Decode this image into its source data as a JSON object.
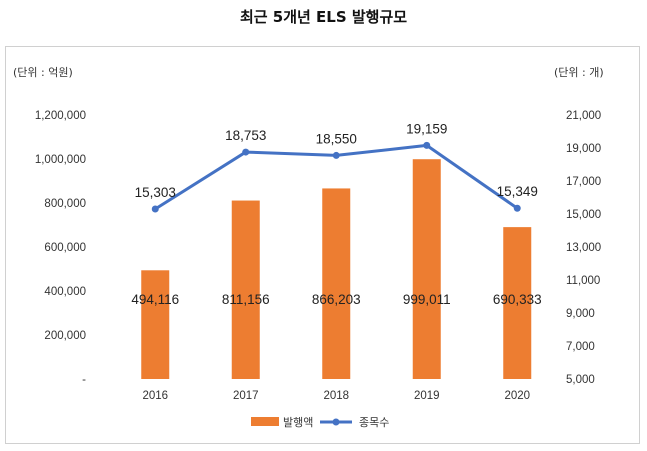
{
  "title": "최근 5개년 ELS 발행규모",
  "chart_data": {
    "type": "bar",
    "title": "최근 5개년 ELS 발행규모",
    "categories": [
      "2016",
      "2017",
      "2018",
      "2019",
      "2020"
    ],
    "series": [
      {
        "name": "발행액",
        "type": "bar",
        "axis": "left",
        "color": "#ED7D31",
        "values": [
          494116,
          811156,
          866203,
          999011,
          690333
        ],
        "labels": [
          "494,116",
          "811,156",
          "866,203",
          "999,011",
          "690,333"
        ]
      },
      {
        "name": "종목수",
        "type": "line",
        "axis": "right",
        "color": "#4472C4",
        "values": [
          15303,
          18753,
          18550,
          19159,
          15349
        ],
        "labels": [
          "15,303",
          "18,753",
          "18,550",
          "19,159",
          "15,349"
        ]
      }
    ],
    "y_left": {
      "unit": "(단위 : 억원)",
      "ylim": [
        0,
        1200000
      ],
      "ticks": [
        "-",
        "200,000",
        "400,000",
        "600,000",
        "800,000",
        "1,000,000",
        "1,200,000"
      ]
    },
    "y_right": {
      "unit": "(단위 : 개)",
      "ylim": [
        5000,
        21000
      ],
      "ticks": [
        "5,000",
        "7,000",
        "9,000",
        "11,000",
        "13,000",
        "15,000",
        "17,000",
        "19,000",
        "21,000"
      ]
    },
    "grid": false,
    "legend_position": "bottom"
  }
}
